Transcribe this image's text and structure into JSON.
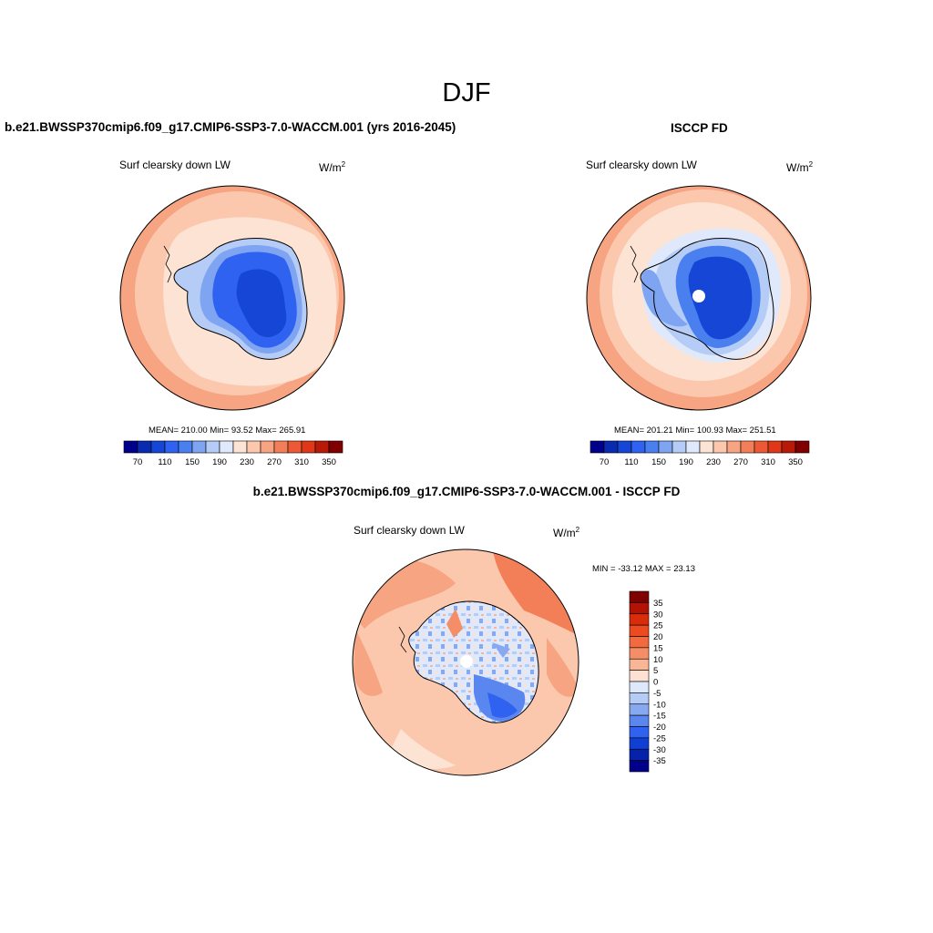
{
  "figure": {
    "title": "DJF",
    "panels": [
      {
        "id": "model",
        "title": "b.e21.BWSSP370cmip6.f09_g17.CMIP6-SSP3-7.0-WACCM.001 (yrs 2016-2045)",
        "variable": "Surf clearsky down LW",
        "unit_base": "W/m",
        "unit_exp": "2",
        "stats_text": "MEAN= 210.00  Min=  93.52  Max= 265.91",
        "colorbar_ticks": [
          "70",
          "110",
          "150",
          "190",
          "230",
          "270",
          "310",
          "350"
        ]
      },
      {
        "id": "obs",
        "title": "ISCCP FD",
        "variable": "Surf clearsky down LW",
        "unit_base": "W/m",
        "unit_exp": "2",
        "stats_text": "MEAN= 201.21  Min= 100.93  Max= 251.51",
        "colorbar_ticks": [
          "70",
          "110",
          "150",
          "190",
          "230",
          "270",
          "310",
          "350"
        ]
      },
      {
        "id": "diff",
        "title": "b.e21.BWSSP370cmip6.f09_g17.CMIP6-SSP3-7.0-WACCM.001 - ISCCP FD",
        "variable": "Surf clearsky down LW",
        "unit_base": "W/m",
        "unit_exp": "2",
        "stats_text": "MIN = -33.12 MAX =  23.13",
        "colorbar_ticks": [
          "35",
          "30",
          "25",
          "20",
          "15",
          "10",
          "5",
          "0",
          "-5",
          "-10",
          "-15",
          "-20",
          "-25",
          "-30",
          "-35"
        ]
      }
    ],
    "colors": {
      "abs_scale": [
        "#00008b",
        "#0a2bb0",
        "#1546d6",
        "#2f62f0",
        "#4a7ff0",
        "#7ea4f2",
        "#b4ccf6",
        "#dfe9fb",
        "#fde3d3",
        "#fbc8ae",
        "#f7a482",
        "#f27f58",
        "#ec5a35",
        "#df3818",
        "#b81a08",
        "#7f0000"
      ],
      "diff_scale": [
        "#7f0000",
        "#b31305",
        "#d92c0b",
        "#ec4a1f",
        "#f26a3d",
        "#f58e66",
        "#f9b697",
        "#fde1d3",
        "#dde8fb",
        "#b4ccf6",
        "#86a9f2",
        "#5a86f0",
        "#2f62f0",
        "#1040d3",
        "#0522aa",
        "#00008b"
      ]
    }
  }
}
